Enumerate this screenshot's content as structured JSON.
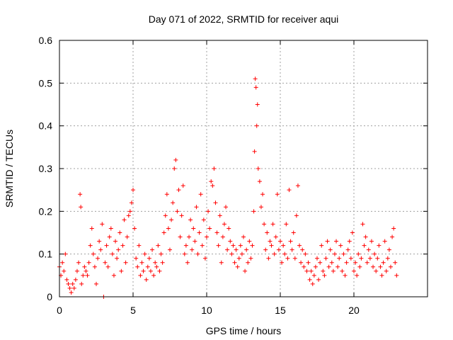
{
  "chart_data": {
    "type": "scatter",
    "title": "Day 071 of 2022, SRMTID for receiver aqui",
    "xlabel": "GPS time / hours",
    "ylabel": "SRMTID / TECUs",
    "xlim": [
      0,
      25
    ],
    "ylim": [
      0,
      0.6
    ],
    "xticks": [
      0,
      5,
      10,
      15,
      20
    ],
    "yticks": [
      0,
      0.1,
      0.2,
      0.3,
      0.4,
      0.5,
      0.6
    ],
    "xtick_labels": [
      "0",
      "5",
      "10",
      "15",
      "20"
    ],
    "ytick_labels": [
      "0",
      "0.1",
      "0.2",
      "0.3",
      "0.4",
      "0.5",
      "0.6"
    ],
    "grid": true,
    "marker": "+",
    "color": "#ff0000",
    "series": [
      {
        "name": "SRMTID",
        "points": [
          [
            0.0,
            0.07
          ],
          [
            0.1,
            0.05
          ],
          [
            0.2,
            0.08
          ],
          [
            0.3,
            0.06
          ],
          [
            0.4,
            0.1
          ],
          [
            0.5,
            0.04
          ],
          [
            0.6,
            0.03
          ],
          [
            0.7,
            0.02
          ],
          [
            0.8,
            0.01
          ],
          [
            0.9,
            0.03
          ],
          [
            1.0,
            0.02
          ],
          [
            1.1,
            0.04
          ],
          [
            1.2,
            0.06
          ],
          [
            1.3,
            0.08
          ],
          [
            1.4,
            0.24
          ],
          [
            1.45,
            0.21
          ],
          [
            1.5,
            0.03
          ],
          [
            1.6,
            0.05
          ],
          [
            1.7,
            0.07
          ],
          [
            1.8,
            0.06
          ],
          [
            1.9,
            0.05
          ],
          [
            2.0,
            0.08
          ],
          [
            2.1,
            0.12
          ],
          [
            2.2,
            0.16
          ],
          [
            2.3,
            0.1
          ],
          [
            2.4,
            0.07
          ],
          [
            2.5,
            0.03
          ],
          [
            2.6,
            0.09
          ],
          [
            2.7,
            0.13
          ],
          [
            2.8,
            0.11
          ],
          [
            2.9,
            0.17
          ],
          [
            3.0,
            0.0
          ],
          [
            3.1,
            0.08
          ],
          [
            3.2,
            0.12
          ],
          [
            3.3,
            0.07
          ],
          [
            3.4,
            0.14
          ],
          [
            3.5,
            0.16
          ],
          [
            3.6,
            0.1
          ],
          [
            3.7,
            0.05
          ],
          [
            3.8,
            0.13
          ],
          [
            3.9,
            0.09
          ],
          [
            4.0,
            0.11
          ],
          [
            4.1,
            0.15
          ],
          [
            4.2,
            0.06
          ],
          [
            4.3,
            0.12
          ],
          [
            4.4,
            0.18
          ],
          [
            4.5,
            0.08
          ],
          [
            4.6,
            0.14
          ],
          [
            4.7,
            0.19
          ],
          [
            4.8,
            0.2
          ],
          [
            4.9,
            0.22
          ],
          [
            5.0,
            0.25
          ],
          [
            5.1,
            0.16
          ],
          [
            5.2,
            0.09
          ],
          [
            5.3,
            0.07
          ],
          [
            5.4,
            0.12
          ],
          [
            5.5,
            0.05
          ],
          [
            5.6,
            0.08
          ],
          [
            5.7,
            0.06
          ],
          [
            5.8,
            0.1
          ],
          [
            5.9,
            0.04
          ],
          [
            6.0,
            0.07
          ],
          [
            6.1,
            0.09
          ],
          [
            6.2,
            0.06
          ],
          [
            6.3,
            0.11
          ],
          [
            6.4,
            0.05
          ],
          [
            6.5,
            0.08
          ],
          [
            6.6,
            0.07
          ],
          [
            6.7,
            0.12
          ],
          [
            6.8,
            0.06
          ],
          [
            6.9,
            0.1
          ],
          [
            7.0,
            0.08
          ],
          [
            7.1,
            0.15
          ],
          [
            7.2,
            0.19
          ],
          [
            7.3,
            0.24
          ],
          [
            7.4,
            0.16
          ],
          [
            7.5,
            0.11
          ],
          [
            7.6,
            0.18
          ],
          [
            7.7,
            0.22
          ],
          [
            7.8,
            0.3
          ],
          [
            7.9,
            0.32
          ],
          [
            8.0,
            0.2
          ],
          [
            8.1,
            0.25
          ],
          [
            8.2,
            0.14
          ],
          [
            8.3,
            0.19
          ],
          [
            8.4,
            0.26
          ],
          [
            8.5,
            0.1
          ],
          [
            8.6,
            0.12
          ],
          [
            8.7,
            0.08
          ],
          [
            8.8,
            0.14
          ],
          [
            8.9,
            0.18
          ],
          [
            9.0,
            0.11
          ],
          [
            9.1,
            0.16
          ],
          [
            9.2,
            0.13
          ],
          [
            9.3,
            0.21
          ],
          [
            9.4,
            0.1
          ],
          [
            9.5,
            0.15
          ],
          [
            9.6,
            0.24
          ],
          [
            9.7,
            0.12
          ],
          [
            9.8,
            0.18
          ],
          [
            9.9,
            0.09
          ],
          [
            10.0,
            0.14
          ],
          [
            10.1,
            0.2
          ],
          [
            10.2,
            0.16
          ],
          [
            10.3,
            0.27
          ],
          [
            10.4,
            0.26
          ],
          [
            10.5,
            0.3
          ],
          [
            10.6,
            0.22
          ],
          [
            10.7,
            0.15
          ],
          [
            10.8,
            0.12
          ],
          [
            10.9,
            0.19
          ],
          [
            11.0,
            0.08
          ],
          [
            11.1,
            0.14
          ],
          [
            11.2,
            0.17
          ],
          [
            11.3,
            0.21
          ],
          [
            11.4,
            0.11
          ],
          [
            11.5,
            0.16
          ],
          [
            11.6,
            0.13
          ],
          [
            11.7,
            0.1
          ],
          [
            11.8,
            0.12
          ],
          [
            11.9,
            0.08
          ],
          [
            12.0,
            0.11
          ],
          [
            12.1,
            0.07
          ],
          [
            12.2,
            0.09
          ],
          [
            12.3,
            0.12
          ],
          [
            12.4,
            0.1
          ],
          [
            12.5,
            0.14
          ],
          [
            12.6,
            0.06
          ],
          [
            12.7,
            0.11
          ],
          [
            12.8,
            0.08
          ],
          [
            12.9,
            0.13
          ],
          [
            13.0,
            0.09
          ],
          [
            13.1,
            0.12
          ],
          [
            13.2,
            0.2
          ],
          [
            13.25,
            0.34
          ],
          [
            13.3,
            0.51
          ],
          [
            13.35,
            0.49
          ],
          [
            13.4,
            0.4
          ],
          [
            13.45,
            0.45
          ],
          [
            13.5,
            0.3
          ],
          [
            13.6,
            0.27
          ],
          [
            13.7,
            0.21
          ],
          [
            13.8,
            0.24
          ],
          [
            13.9,
            0.17
          ],
          [
            14.0,
            0.11
          ],
          [
            14.1,
            0.15
          ],
          [
            14.2,
            0.09
          ],
          [
            14.3,
            0.13
          ],
          [
            14.4,
            0.12
          ],
          [
            14.5,
            0.17
          ],
          [
            14.6,
            0.1
          ],
          [
            14.7,
            0.14
          ],
          [
            14.8,
            0.24
          ],
          [
            14.9,
            0.11
          ],
          [
            15.0,
            0.13
          ],
          [
            15.1,
            0.08
          ],
          [
            15.2,
            0.12
          ],
          [
            15.3,
            0.1
          ],
          [
            15.4,
            0.17
          ],
          [
            15.5,
            0.09
          ],
          [
            15.6,
            0.25
          ],
          [
            15.7,
            0.13
          ],
          [
            15.8,
            0.11
          ],
          [
            15.9,
            0.15
          ],
          [
            16.0,
            0.09
          ],
          [
            16.1,
            0.19
          ],
          [
            16.2,
            0.26
          ],
          [
            16.3,
            0.12
          ],
          [
            16.4,
            0.08
          ],
          [
            16.5,
            0.11
          ],
          [
            16.6,
            0.07
          ],
          [
            16.7,
            0.1
          ],
          [
            16.8,
            0.06
          ],
          [
            16.9,
            0.08
          ],
          [
            17.0,
            0.04
          ],
          [
            17.1,
            0.06
          ],
          [
            17.2,
            0.03
          ],
          [
            17.3,
            0.05
          ],
          [
            17.4,
            0.07
          ],
          [
            17.5,
            0.09
          ],
          [
            17.6,
            0.04
          ],
          [
            17.7,
            0.08
          ],
          [
            17.8,
            0.12
          ],
          [
            17.9,
            0.06
          ],
          [
            18.0,
            0.05
          ],
          [
            18.1,
            0.09
          ],
          [
            18.2,
            0.13
          ],
          [
            18.3,
            0.07
          ],
          [
            18.4,
            0.11
          ],
          [
            18.5,
            0.08
          ],
          [
            18.6,
            0.06
          ],
          [
            18.7,
            0.1
          ],
          [
            18.8,
            0.13
          ],
          [
            18.9,
            0.07
          ],
          [
            19.0,
            0.09
          ],
          [
            19.1,
            0.12
          ],
          [
            19.2,
            0.06
          ],
          [
            19.3,
            0.1
          ],
          [
            19.4,
            0.05
          ],
          [
            19.5,
            0.08
          ],
          [
            19.6,
            0.11
          ],
          [
            19.7,
            0.13
          ],
          [
            19.8,
            0.09
          ],
          [
            19.9,
            0.15
          ],
          [
            20.0,
            0.06
          ],
          [
            20.1,
            0.08
          ],
          [
            20.2,
            0.05
          ],
          [
            20.3,
            0.1
          ],
          [
            20.4,
            0.07
          ],
          [
            20.5,
            0.09
          ],
          [
            20.6,
            0.17
          ],
          [
            20.7,
            0.12
          ],
          [
            20.8,
            0.14
          ],
          [
            20.9,
            0.08
          ],
          [
            21.0,
            0.11
          ],
          [
            21.1,
            0.09
          ],
          [
            21.2,
            0.13
          ],
          [
            21.3,
            0.07
          ],
          [
            21.4,
            0.1
          ],
          [
            21.5,
            0.06
          ],
          [
            21.6,
            0.09
          ],
          [
            21.7,
            0.12
          ],
          [
            21.8,
            0.07
          ],
          [
            21.9,
            0.05
          ],
          [
            22.0,
            0.08
          ],
          [
            22.1,
            0.13
          ],
          [
            22.2,
            0.06
          ],
          [
            22.3,
            0.09
          ],
          [
            22.4,
            0.11
          ],
          [
            22.5,
            0.07
          ],
          [
            22.6,
            0.14
          ],
          [
            22.7,
            0.16
          ],
          [
            22.8,
            0.08
          ],
          [
            22.9,
            0.05
          ]
        ]
      }
    ]
  }
}
